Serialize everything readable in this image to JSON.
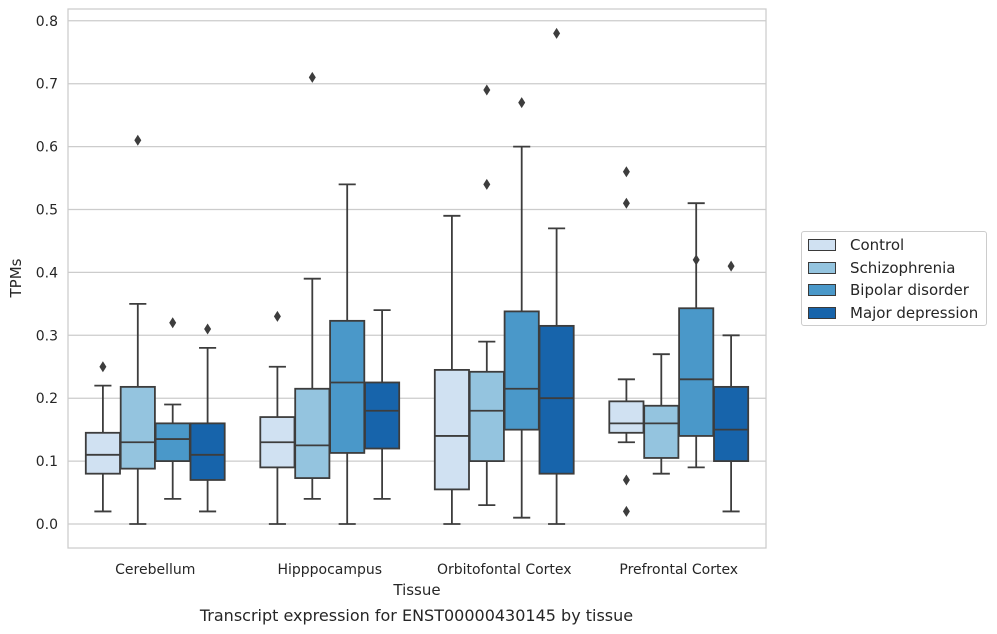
{
  "chart_data": {
    "type": "box",
    "xlabel": "Tissue",
    "ylabel": "TPMs",
    "caption": "Transcript expression for ENST00000430145 by tissue",
    "ylim": [
      -0.04,
      0.82
    ],
    "yticks": [
      "0.0",
      "0.1",
      "0.2",
      "0.3",
      "0.4",
      "0.5",
      "0.6",
      "0.7",
      "0.8"
    ],
    "grid": "horizontal",
    "legend_position": "right",
    "categories": [
      "Cerebellum",
      "Hipppocampus",
      "Orbitofontal Cortex",
      "Prefrontal Cortex"
    ],
    "series": [
      {
        "name": "Control",
        "color": "#d0e1f2",
        "boxes": [
          {
            "whislo": 0.02,
            "q1": 0.08,
            "med": 0.11,
            "q3": 0.145,
            "whishi": 0.22,
            "fliers": [
              0.25
            ]
          },
          {
            "whislo": 0.0,
            "q1": 0.09,
            "med": 0.13,
            "q3": 0.17,
            "whishi": 0.25,
            "fliers": [
              0.33
            ]
          },
          {
            "whislo": 0.0,
            "q1": 0.055,
            "med": 0.14,
            "q3": 0.245,
            "whishi": 0.49,
            "fliers": []
          },
          {
            "whislo": 0.13,
            "q1": 0.145,
            "med": 0.16,
            "q3": 0.195,
            "whishi": 0.23,
            "fliers": [
              0.07,
              0.02,
              0.51,
              0.56
            ]
          }
        ]
      },
      {
        "name": "Schizophrenia",
        "color": "#94c4df",
        "boxes": [
          {
            "whislo": 0.0,
            "q1": 0.088,
            "med": 0.13,
            "q3": 0.218,
            "whishi": 0.35,
            "fliers": [
              0.61
            ]
          },
          {
            "whislo": 0.04,
            "q1": 0.073,
            "med": 0.125,
            "q3": 0.215,
            "whishi": 0.39,
            "fliers": [
              0.71
            ]
          },
          {
            "whislo": 0.03,
            "q1": 0.1,
            "med": 0.18,
            "q3": 0.242,
            "whishi": 0.29,
            "fliers": [
              0.54,
              0.69
            ]
          },
          {
            "whislo": 0.08,
            "q1": 0.105,
            "med": 0.16,
            "q3": 0.188,
            "whishi": 0.27,
            "fliers": []
          }
        ]
      },
      {
        "name": "Bipolar disorder",
        "color": "#4a98c9",
        "boxes": [
          {
            "whislo": 0.04,
            "q1": 0.1,
            "med": 0.135,
            "q3": 0.16,
            "whishi": 0.19,
            "fliers": [
              0.32
            ]
          },
          {
            "whislo": 0.0,
            "q1": 0.113,
            "med": 0.225,
            "q3": 0.323,
            "whishi": 0.54,
            "fliers": []
          },
          {
            "whislo": 0.01,
            "q1": 0.15,
            "med": 0.215,
            "q3": 0.338,
            "whishi": 0.6,
            "fliers": [
              0.67
            ]
          },
          {
            "whislo": 0.09,
            "q1": 0.14,
            "med": 0.23,
            "q3": 0.343,
            "whishi": 0.51,
            "fliers": [
              0.42
            ]
          }
        ]
      },
      {
        "name": "Major depression",
        "color": "#1764ab",
        "boxes": [
          {
            "whislo": 0.02,
            "q1": 0.07,
            "med": 0.11,
            "q3": 0.16,
            "whishi": 0.28,
            "fliers": [
              0.31
            ]
          },
          {
            "whislo": 0.04,
            "q1": 0.12,
            "med": 0.18,
            "q3": 0.225,
            "whishi": 0.34,
            "fliers": []
          },
          {
            "whislo": 0.0,
            "q1": 0.08,
            "med": 0.2,
            "q3": 0.315,
            "whishi": 0.47,
            "fliers": [
              0.78
            ]
          },
          {
            "whislo": 0.02,
            "q1": 0.1,
            "med": 0.15,
            "q3": 0.218,
            "whishi": 0.3,
            "fliers": [
              0.41
            ]
          }
        ]
      }
    ]
  }
}
